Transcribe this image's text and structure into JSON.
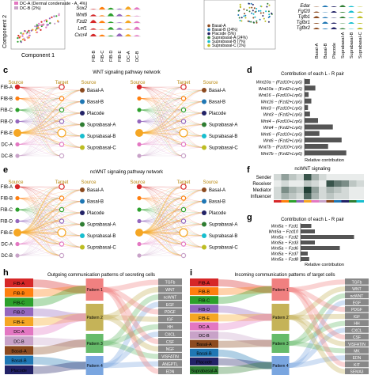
{
  "panels": {
    "c": "c",
    "d": "d",
    "e": "e",
    "f": "f",
    "g": "g",
    "h": "h",
    "i": "i"
  },
  "top": {
    "ylabel": "Component 2",
    "xlabel": "Component 1",
    "legend_left": [
      "DC-A (Dermal condensate - A, 4%)",
      "DC-B (2%)"
    ],
    "genes_left": [
      "Sox2",
      "Wnt6",
      "Fzd2",
      "Lef1",
      "Cxcr4"
    ],
    "cats_left": [
      "FIB-B",
      "FIB-C",
      "FIB-D",
      "FIB-E",
      "DC-A",
      "DC-B"
    ],
    "legend_right": [
      "Basal-A",
      "Basal-B (24%)",
      "Placode (5%)",
      "Suprabasal-A (24%)",
      "Suprabasal-B (7%)",
      "Suprabasal-C (1%)"
    ],
    "genes_right": [
      "Edar",
      "Fgf20",
      "Tgfb1",
      "Tgfbr1",
      "Tgfbr2"
    ],
    "cats_right": [
      "Basal-A",
      "Basal-B",
      "Placode",
      "Suprabasal-A",
      "Suprabasal-B",
      "Suprabasal-C"
    ]
  },
  "c": {
    "title": "WNT signaling pathway network",
    "source": "Source",
    "target": "Target",
    "left_nodes": [
      "FIB-A",
      "FIB-B",
      "FIB-C",
      "FIB-D",
      "FIB-E",
      "DC-A",
      "DC-B"
    ],
    "right_nodes": [
      "Basal-A",
      "Basal-B",
      "Placode",
      "Suprabasal-A",
      "Suprabasal-B",
      "Suprabasal-C"
    ]
  },
  "e": {
    "title": "ncWNT signaling pathway network",
    "source": "Source",
    "target": "Target",
    "left_nodes": [
      "FIB-A",
      "FIB-B",
      "FIB-C",
      "FIB-D",
      "FIB-E",
      "DC-A",
      "DC-B"
    ],
    "right_nodes": [
      "Basal-A",
      "Basal-B",
      "Placode",
      "Suprabasal-A",
      "Suprabasal-B",
      "Suprabasal-C"
    ]
  },
  "d": {
    "title": "Contribution of each L - R pair",
    "xlabel": "Relative contribution",
    "pairs": [
      "Wnt10a − (Fzd10+Lrp6)",
      "Wnt10a − (Fzd2+Lrp6)",
      "Wnt16 − (Fzd10+Lrp6)",
      "Wnt16 − (Fzd2+Lrp6)",
      "Wnt3 − (Fzd10+Lrp6)",
      "Wnt3 − (Fzd2+Lrp6)",
      "Wnt4 − (Fzd10+Lrp6)",
      "Wnt4 − (Fzd2+Lrp6)",
      "Wnt6 − (Fzd10+Lrp6)",
      "Wnt6 − (Fzd2+Lrp6)",
      "Wnt7b − (Fzd10+Lrp6)",
      "Wnt7b − (Fzd2+Lrp6)"
    ],
    "values": [
      0.08,
      0.16,
      0.06,
      0.1,
      0.05,
      0.08,
      0.2,
      0.42,
      0.22,
      0.55,
      0.35,
      0.62
    ]
  },
  "f": {
    "title": "ncWNT signaling",
    "roles": [
      "Sender",
      "Receiver",
      "Mediator",
      "Influencer"
    ]
  },
  "g": {
    "title": "Contribution of each L - R pair",
    "xlabel": "Relative contribution",
    "pairs": [
      "Wnt5a − Fzd1",
      "Wnt5a − Fzd10",
      "Wnt5a − Fzd2",
      "Wnt5a − Fzd3",
      "Wnt5a − Fzd6",
      "Wnt5a − Fzd7",
      "Wnt5a − Fzd8"
    ],
    "values": [
      0.15,
      0.2,
      0.75,
      0.2,
      0.55,
      0.1,
      0.12
    ]
  },
  "h": {
    "title": "Outgoing communication patterns of secreting cells",
    "cells": [
      "FIB-A",
      "FIB-B",
      "FIB-C",
      "FIB-D",
      "FIB-E",
      "DC-A",
      "DC-B",
      "Basal-A",
      "Basal-B",
      "Placode"
    ],
    "patterns": [
      "Pattern 1",
      "Pattern 2",
      "Pattern 3",
      "Pattern 4"
    ],
    "pathways": [
      "TGFb",
      "WNT",
      "ncWNT",
      "EGF",
      "PDGF",
      "IGF",
      "HH",
      "CXCL",
      "CSF",
      "NGF",
      "VISFATIN",
      "ANGPTL",
      "EDN"
    ]
  },
  "i": {
    "title": "Incoming communication patterns of target cells",
    "cells": [
      "FIB-A",
      "FIB-B",
      "FIB-C",
      "FIB-D",
      "FIB-E",
      "DC-A",
      "DC-B",
      "Basal-A",
      "Basal-B",
      "Placode",
      "Suprabasal-A"
    ],
    "patterns": [
      "Pattern 1",
      "Pattern 2",
      "Pattern 3",
      "Pattern 4"
    ],
    "pathways": [
      "TGFb",
      "WNT",
      "ncWNT",
      "EGF",
      "PDGF",
      "IGF",
      "HH",
      "CXCL",
      "CSF",
      "VISFATIN",
      "MK",
      "EDN",
      "KIT",
      "SEMA3"
    ]
  },
  "colors": {
    "FIB-A": "#d62728",
    "FIB-B": "#ff7f0e",
    "FIB-C": "#2ca02c",
    "FIB-D": "#9467bd",
    "FIB-E": "#f5a623",
    "DC-A": "#e377c2",
    "DC-B": "#c8a2c8",
    "Basal-A": "#8c4a1f",
    "Basal-B": "#1f77b4",
    "Placode": "#222266",
    "Suprabasal-A": "#2e7d32",
    "Suprabasal-B": "#17becf",
    "Suprabasal-C": "#bcbd22",
    "Pattern 1": "#f08080",
    "Pattern 2": "#c5b358",
    "Pattern 3": "#66bb6a",
    "Pattern 4": "#7aa6e0"
  }
}
